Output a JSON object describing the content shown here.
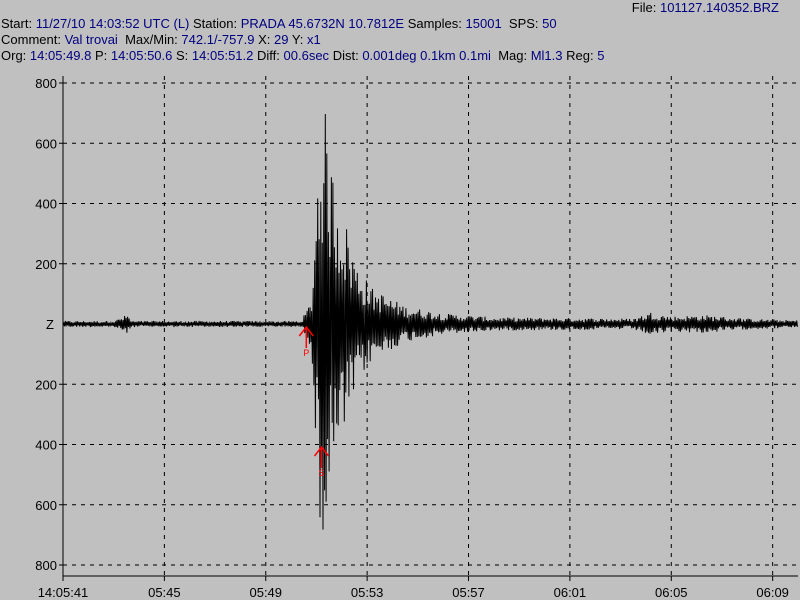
{
  "header": {
    "file_label": "File:",
    "file_value": "101127.140352.BRZ",
    "start_label": "Start:",
    "start_value": "11/27/10 14:03:52 UTC (L)",
    "station_label": "Station:",
    "station_value": "PRADA 45.6732N 10.7812E",
    "samples_label": "Samples:",
    "samples_value": "15001",
    "sps_label": "SPS:",
    "sps_value": "50",
    "comment_label": "Comment:",
    "comment_value": "Val trovai",
    "maxmin_label": "Max/Min:",
    "maxmin_value": "742.1/-757.9",
    "x_label": "X:",
    "x_value": "29",
    "y_label": "Y:",
    "y_value": "x1",
    "org_label": "Org:",
    "org_value": "14:05:49.8",
    "p_label": "P:",
    "p_value": "14:05:50.6",
    "s_label": "S:",
    "s_value": "14:05:51.2",
    "diff_label": "Diff:",
    "diff_value": "00.6sec",
    "dist_label": "Dist:",
    "dist_value": "0.001deg 0.1km 0.1mi",
    "mag_label": "Mag:",
    "mag_value": "Ml1.3",
    "reg_label": "Reg:",
    "reg_value": "5"
  },
  "colors": {
    "background": "#c0c0c0",
    "trace": "#000000",
    "values": "#000080",
    "pick": "#ff0000",
    "grid": "#000000"
  },
  "chart_data": {
    "type": "line",
    "channel_label": "Z",
    "x_start": "14:05:41",
    "x_tick_labels": [
      "14:05:41",
      "05:45",
      "05:49",
      "05:53",
      "05:57",
      "06:01",
      "06:05",
      "06:09"
    ],
    "x_tick_seconds": [
      0,
      4,
      8,
      12,
      16,
      20,
      24,
      28
    ],
    "xlim_seconds": [
      0,
      29
    ],
    "y_tick_labels": [
      "800",
      "600",
      "400",
      "200",
      "200",
      "400",
      "600",
      "800"
    ],
    "y_tick_values": [
      800,
      600,
      400,
      200,
      -200,
      -400,
      -600,
      -800
    ],
    "ylim": [
      -800,
      800
    ],
    "y_max": 742.1,
    "y_min": -757.9,
    "grid": true,
    "picks": [
      {
        "name": "P",
        "time_seconds": 9.6,
        "color": "#ff0000"
      },
      {
        "name": "S",
        "time_seconds": 10.2,
        "color": "#ff0000"
      }
    ],
    "envelope": [
      [
        0,
        10
      ],
      [
        2,
        10
      ],
      [
        2.55,
        32
      ],
      [
        2.7,
        10
      ],
      [
        9.4,
        10
      ],
      [
        9.6,
        45
      ],
      [
        9.8,
        80
      ],
      [
        10.1,
        620
      ],
      [
        10.3,
        742
      ],
      [
        10.55,
        560
      ],
      [
        10.8,
        450
      ],
      [
        11.2,
        330
      ],
      [
        11.6,
        200
      ],
      [
        12.2,
        120
      ],
      [
        13.5,
        60
      ],
      [
        15,
        35
      ],
      [
        17,
        22
      ],
      [
        22.5,
        18
      ],
      [
        23.2,
        40
      ],
      [
        24,
        25
      ],
      [
        25.3,
        30
      ],
      [
        27,
        18
      ],
      [
        29,
        12
      ]
    ]
  }
}
